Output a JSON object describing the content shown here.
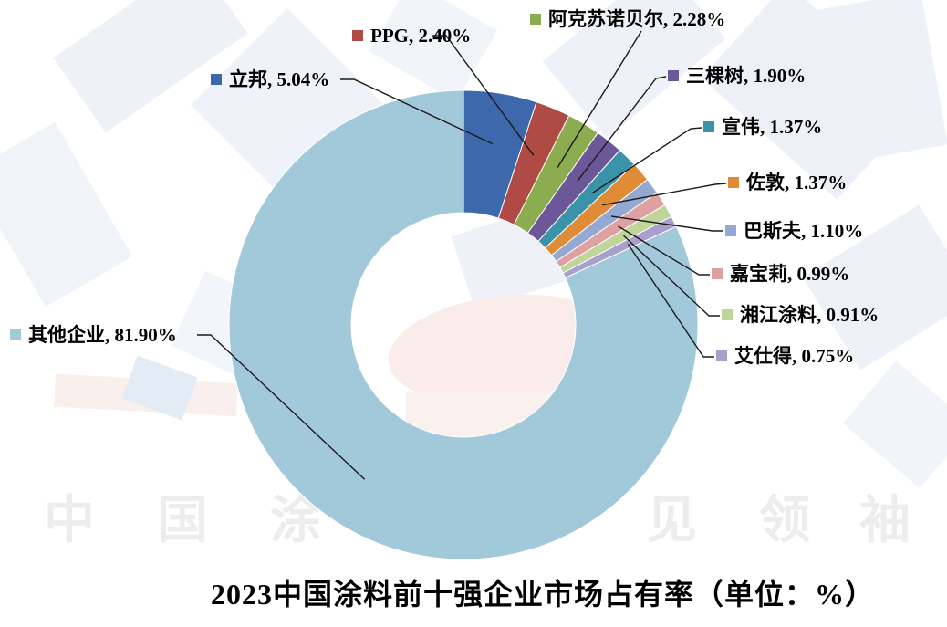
{
  "chart_data": {
    "type": "pie",
    "subtype": "donut",
    "title": "2023中国涂料前十强企业市场占有率（单位：%）",
    "unit": "%",
    "start_angle": "12-oclock, clockwise",
    "hole_ratio": 0.48,
    "legend_position": "callout-labels-with-leader-lines",
    "series": [
      {
        "name": "立邦",
        "value": 5.04,
        "label": "立邦, 5.04%",
        "color": "#3D68AC"
      },
      {
        "name": "PPG",
        "value": 2.4,
        "label": "PPG, 2.40%",
        "color": "#B04A45"
      },
      {
        "name": "阿克苏诺贝尔",
        "value": 2.28,
        "label": "阿克苏诺贝尔, 2.28%",
        "color": "#8CAC50"
      },
      {
        "name": "三棵树",
        "value": 1.9,
        "label": "三棵树, 1.90%",
        "color": "#6C5899"
      },
      {
        "name": "宣伟",
        "value": 1.37,
        "label": "宣伟, 1.37%",
        "color": "#3A93A9"
      },
      {
        "name": "佐敦",
        "value": 1.37,
        "label": "佐敦, 1.37%",
        "color": "#E08B36"
      },
      {
        "name": "巴斯夫",
        "value": 1.1,
        "label": "巴斯夫, 1.10%",
        "color": "#94A9D2"
      },
      {
        "name": "嘉宝莉",
        "value": 0.99,
        "label": "嘉宝莉, 0.99%",
        "color": "#DFA0A2"
      },
      {
        "name": "湘江涂料",
        "value": 0.91,
        "label": "湘江涂料, 0.91%",
        "color": "#BFD59A"
      },
      {
        "name": "艾仕得",
        "value": 0.75,
        "label": "艾仕得, 0.75%",
        "color": "#A89FCD"
      },
      {
        "name": "其他企业",
        "value": 81.9,
        "label": "其他企业, 81.90%",
        "color": "#A2C9D9"
      }
    ]
  },
  "title": {
    "text": "2023中国涂料前十强企业市场占有率（单位：%）"
  },
  "watermark": {
    "chars": [
      "中",
      "国",
      "涂",
      "见",
      "领",
      "袖"
    ]
  }
}
